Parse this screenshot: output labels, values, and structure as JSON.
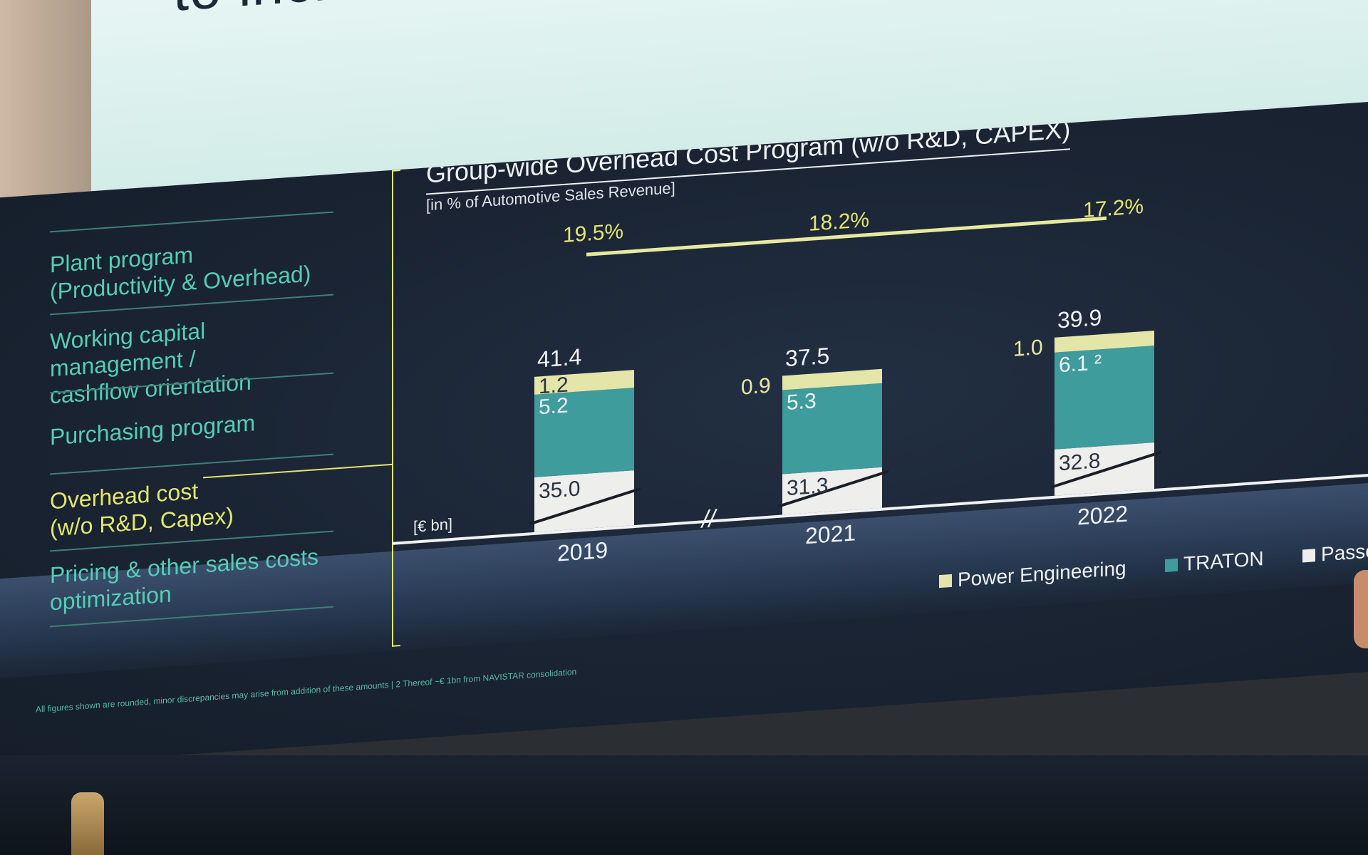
{
  "upper_screen": {
    "headline": "to increase robustness of"
  },
  "menu": {
    "items": [
      {
        "label": "Plant program\n(Productivity & Overhead)",
        "active": false
      },
      {
        "label": "Working capital management /\ncashflow orientation",
        "active": false
      },
      {
        "label": "Purchasing program",
        "active": false
      },
      {
        "label": "Overhead cost\n(w/o R&D, Capex)",
        "active": true
      },
      {
        "label": "Pricing & other sales costs\noptimization",
        "active": false
      }
    ]
  },
  "footnote": "All figures shown are rounded, minor discrepancies may arise from addition of these amounts  |  2 Thereof ~€ 1bn from NAVISTAR consolidation",
  "chart_data": {
    "type": "bar",
    "title": "Group-wide Overhead Cost Program (w/o R&D, CAPEX)",
    "subtitle": "[in % of Automotive Sales Revenue]",
    "unit_label": "[€ bn]",
    "categories": [
      "2019",
      "2021",
      "2022"
    ],
    "share_of_revenue": [
      "19.5%",
      "18.2%",
      "17.2%"
    ],
    "totals": [
      "41.4",
      "37.5",
      "39.9"
    ],
    "series": [
      {
        "name": "Passe",
        "values": [
          35.0,
          31.3,
          32.8
        ],
        "labels": [
          "35.0",
          "31.3",
          "32.8"
        ]
      },
      {
        "name": "TRATON",
        "values": [
          5.2,
          5.3,
          6.1
        ],
        "labels": [
          "5.2",
          "5.3",
          "6.1 ²"
        ]
      },
      {
        "name": "Power Engineering",
        "values": [
          1.2,
          0.9,
          1.0
        ],
        "labels": [
          "1.2",
          "0.9",
          "1.0"
        ]
      }
    ],
    "legend": [
      {
        "name": "Power Engineering",
        "color": "#e3e6a8"
      },
      {
        "name": "TRATON",
        "color": "#3e9c9c"
      },
      {
        "name": "Passe",
        "color": "#eeeeec"
      }
    ],
    "axis_break_between": [
      "2019",
      "2021"
    ],
    "colors": {
      "power_engineering": "#e3e6a8",
      "traton": "#3e9c9c",
      "passenger": "#eeeeec",
      "accent": "#e2e66d",
      "menu_text": "#55cdb4"
    }
  }
}
